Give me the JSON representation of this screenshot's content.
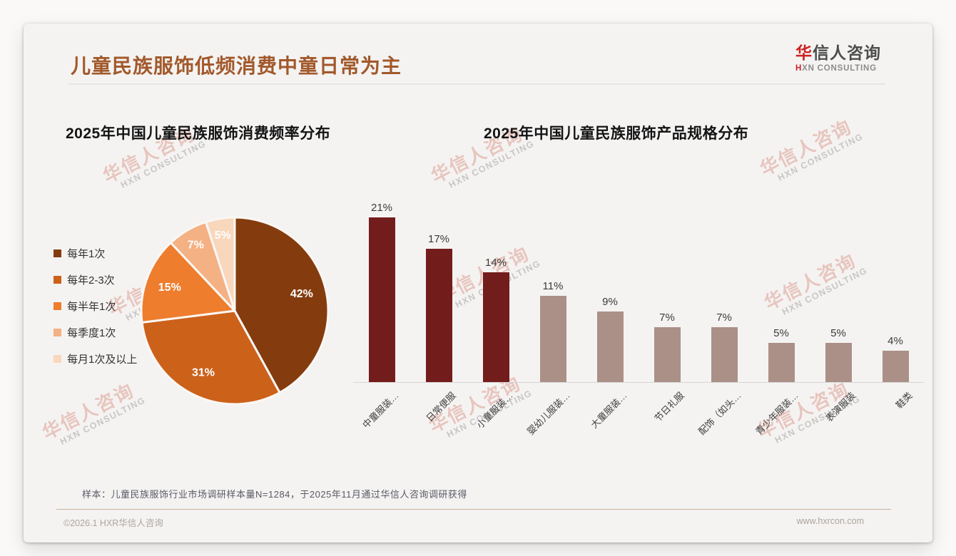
{
  "header": {
    "title": "儿童民族服饰低频消费中童日常为主",
    "logo": {
      "zh_accent": "华",
      "zh_rest": "信人咨询",
      "en_accent": "H",
      "en_rest": "XN CONSULTING"
    }
  },
  "watermark": {
    "zh": "华信人咨询",
    "en": "HXN CONSULTING"
  },
  "chart_data": [
    {
      "type": "pie",
      "title": "2025年中国儿童民族服饰消费频率分布",
      "categories": [
        "每年1次",
        "每年2-3次",
        "每半年1次",
        "每季度1次",
        "每月1次及以上"
      ],
      "values": [
        42,
        31,
        15,
        7,
        5
      ],
      "unit": "%",
      "colors": [
        "#843C0E",
        "#CC611A",
        "#EE7D2E",
        "#F4B183",
        "#F9D7BC"
      ],
      "legend_position": "left",
      "label_style": "percent-inside-white",
      "start_angle": "top",
      "direction": "clockwise"
    },
    {
      "type": "bar",
      "title": "2025年中国儿童民族服饰产品规格分布",
      "categories": [
        "中童服装…",
        "日常便服",
        "小童服装…",
        "婴幼儿服装…",
        "大童服装…",
        "节日礼服",
        "配饰（如头…",
        "青少年服装…",
        "表演服装",
        "鞋类"
      ],
      "values": [
        21,
        17,
        14,
        11,
        9,
        7,
        7,
        5,
        5,
        4
      ],
      "unit": "%",
      "highlight_color": "#731C1C",
      "base_color": "#AB9087",
      "highlight_count": 3,
      "ylim": [
        0,
        23
      ],
      "gridlines": false,
      "x_label_rotation_deg": 45,
      "value_labels": "above-bars",
      "legend_position": "none"
    }
  ],
  "footnote": "样本：儿童民族服饰行业市场调研样本量N=1284，于2025年11月通过华信人咨询调研获得",
  "footer": {
    "left": "©2026.1 HXR华信人咨询",
    "right": "www.hxrcon.com"
  }
}
